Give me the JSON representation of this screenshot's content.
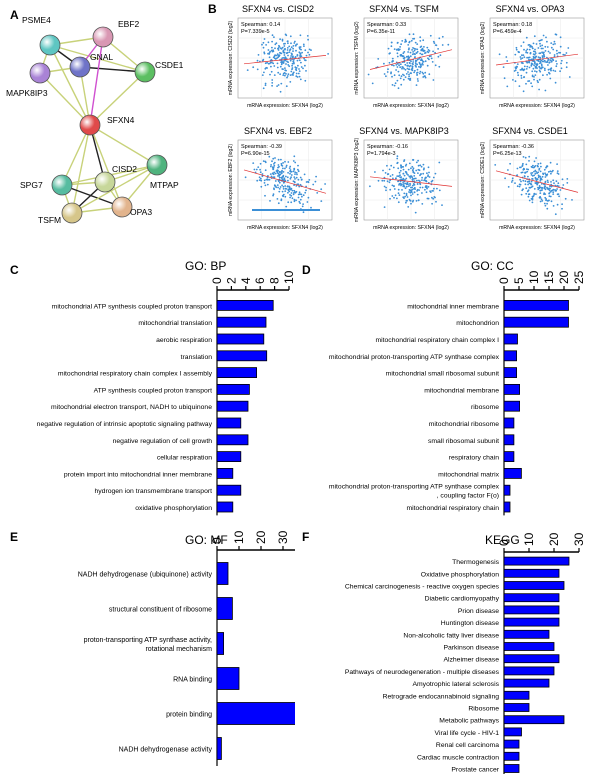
{
  "panels": {
    "A": "A",
    "B": "B",
    "C": "C",
    "D": "D",
    "E": "E",
    "F": "F"
  },
  "network": {
    "nodes": [
      {
        "name": "PSME4",
        "color": "#5ec6c2"
      },
      {
        "name": "EBF2",
        "color": "#d997b3"
      },
      {
        "name": "GNAL",
        "color": "#6f73c8"
      },
      {
        "name": "CSDE1",
        "color": "#5cbf62"
      },
      {
        "name": "MAPK8IP3",
        "color": "#a983d6"
      },
      {
        "name": "SFXN4",
        "color": "#e04a4a"
      },
      {
        "name": "CISD2",
        "color": "#c7d79a"
      },
      {
        "name": "MTPAP",
        "color": "#4fb37e"
      },
      {
        "name": "SPG7",
        "color": "#56bca0"
      },
      {
        "name": "TSFM",
        "color": "#d6c68a"
      },
      {
        "name": "OPA3",
        "color": "#e2b48d"
      }
    ]
  },
  "scatter": [
    {
      "title": "SFXN4 vs. CISD2",
      "spearman": "Spearman: 0.14",
      "p": "P=7.339e-5",
      "ylabel": "mRNA expression: CISD2 (log2)",
      "xlabel": "mRNA expression: SFXN4 (log2)",
      "rho": 0.14
    },
    {
      "title": "SFXN4 vs. TSFM",
      "spearman": "Spearman: 0.33",
      "p": "P=6.35e-11",
      "ylabel": "mRNA expression: TSFM (log2)",
      "xlabel": "mRNA expression: SFXN4 (log2)",
      "rho": 0.33
    },
    {
      "title": "SFXN4 vs. OPA3",
      "spearman": "Spearman: 0.18",
      "p": "P=6.459e-4",
      "ylabel": "mRNA expression: OPA3 (log2)",
      "xlabel": "mRNA expression: SFXN4 (log2)",
      "rho": 0.18
    },
    {
      "title": "SFXN4 vs. EBF2",
      "spearman": "Spearman: -0.39",
      "p": "P=6.90e-15",
      "ylabel": "mRNA expression: EBF2 (log2)",
      "xlabel": "mRNA expression: SFXN4 (log2)",
      "rho": -0.39
    },
    {
      "title": "SFXN4 vs. MAPK8IP3",
      "spearman": "Spearman: -0.16",
      "p": "P=1.794e-3",
      "ylabel": "mRNA expression: MAPK8IP3 (log2)",
      "xlabel": "mRNA expression: SFXN4 (log2)",
      "rho": -0.16
    },
    {
      "title": "SFXN4 vs. CSDE1",
      "spearman": "Spearman: -0.36",
      "p": "P=6.25e-13",
      "ylabel": "mRNA expression: CSDE1 (log2)",
      "xlabel": "mRNA expression: SFXN4 (log2)",
      "rho": -0.36
    }
  ],
  "colors": {
    "bar": "#0000ff",
    "point": "#3b8fd6",
    "trend": "#e03030"
  },
  "chart_data": [
    {
      "type": "bar",
      "orientation": "horizontal",
      "title": "GO: BP",
      "xlim": [
        0,
        10
      ],
      "ticks": [
        0,
        2,
        4,
        6,
        8,
        10
      ],
      "categories": [
        "mitochondrial ATP synthesis coupled proton transport",
        "mitochondrial translation",
        "aerobic respiration",
        "translation",
        "mitochondrial respiratory chain complex I assembly",
        "ATP synthesis coupled proton transport",
        "mitochondrial electron transport, NADH to ubiquinone",
        "negative regulation of intrinsic apoptotic signaling pathway",
        "negative regulation of cell growth",
        "cellular respiration",
        "protein import into mitochondrial inner membrane",
        "hydrogen ion transmembrane transport",
        "oxidative phosphorylation"
      ],
      "values": [
        7.8,
        6.8,
        6.5,
        6.9,
        5.5,
        4.5,
        4.3,
        3.3,
        4.3,
        3.3,
        2.2,
        3.3,
        2.2
      ]
    },
    {
      "type": "bar",
      "orientation": "horizontal",
      "title": "GO: CC",
      "xlim": [
        0,
        25
      ],
      "ticks": [
        0,
        5,
        10,
        15,
        20,
        25
      ],
      "categories": [
        "mitochondrial inner membrane",
        "mitochondrion",
        "mitochondrial respiratory chain complex I",
        "mitochondrial proton-transporting ATP synthase complex",
        "mitochondrial small ribosomal subunit",
        "mitochondrial membrane",
        "ribosome",
        "mitochondrial ribosome",
        "small ribosomal subunit",
        "respiratory chain",
        "mitochondrial matrix",
        "mitochondrial proton-transporting ATP synthase complex, coupling factor F(o)",
        "mitochondrial respiratory chain"
      ],
      "values": [
        21.5,
        21.5,
        4.5,
        4.2,
        4.2,
        5.2,
        5.2,
        3.3,
        3.3,
        3.3,
        5.8,
        2.0,
        2.0
      ]
    },
    {
      "type": "bar",
      "orientation": "horizontal",
      "title": "GO: MF",
      "xlim": [
        0,
        40
      ],
      "ticks": [
        0,
        10,
        20,
        30,
        40
      ],
      "categories": [
        "NADH dehydrogenase (ubiquinone) activity",
        "structural constituent of ribosome",
        "proton-transporting ATP synthase activity, rotational mechanism",
        "RNA binding",
        "protein binding",
        "NADH dehydrogenase activity"
      ],
      "values": [
        5,
        7,
        3,
        10,
        37,
        2
      ]
    },
    {
      "type": "bar",
      "orientation": "horizontal",
      "title": "KEGG",
      "xlim": [
        0,
        30
      ],
      "ticks": [
        0,
        10,
        20,
        30
      ],
      "categories": [
        "Thermogenesis",
        "Oxidative phosphorylation",
        "Chemical carcinogenesis - reactive oxygen species",
        "Diabetic cardiomyopathy",
        "Prion disease",
        "Huntington disease",
        "Non-alcoholic fatty liver disease",
        "Parkinson disease",
        "Alzheimer disease",
        "Pathways of neurodegeneration - multiple diseases",
        "Amyotrophic lateral sclerosis",
        "Retrograde endocannabinoid signaling",
        "Ribosome",
        "Metabolic pathways",
        "Viral life cycle - HIV-1",
        "Renal cell carcinoma",
        "Cardiac muscle contraction",
        "Prostate cancer"
      ],
      "values": [
        26,
        22,
        24,
        22,
        22,
        22,
        18,
        20,
        22,
        20,
        18,
        10,
        10,
        24,
        7,
        6,
        6,
        6
      ]
    }
  ]
}
